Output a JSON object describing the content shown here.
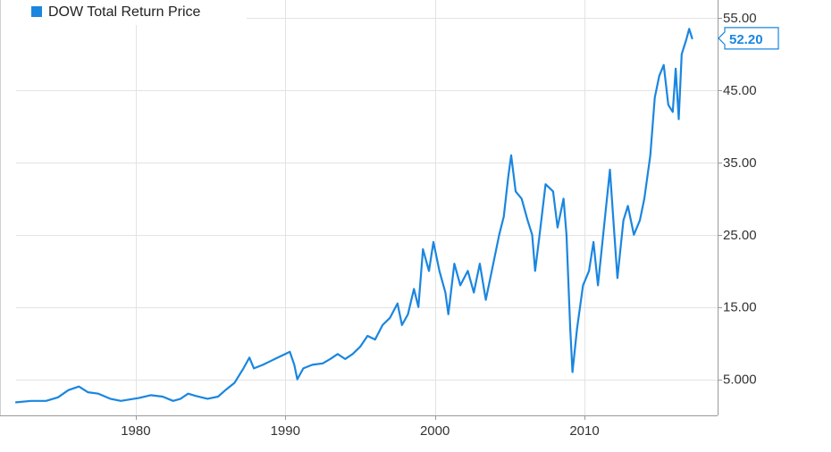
{
  "chart_data": {
    "type": "line",
    "series": [
      {
        "name": "DOW Total Return Price",
        "color": "#1a86e0",
        "points": [
          [
            1972.0,
            1.8
          ],
          [
            1973.0,
            2.0
          ],
          [
            1974.0,
            2.0
          ],
          [
            1974.8,
            2.5
          ],
          [
            1975.5,
            3.5
          ],
          [
            1976.2,
            4.0
          ],
          [
            1976.8,
            3.2
          ],
          [
            1977.5,
            3.0
          ],
          [
            1978.3,
            2.3
          ],
          [
            1979.0,
            2.0
          ],
          [
            1979.6,
            2.2
          ],
          [
            1980.2,
            2.4
          ],
          [
            1981.0,
            2.8
          ],
          [
            1981.8,
            2.6
          ],
          [
            1982.5,
            2.0
          ],
          [
            1983.0,
            2.3
          ],
          [
            1983.5,
            3.0
          ],
          [
            1984.0,
            2.7
          ],
          [
            1984.8,
            2.3
          ],
          [
            1985.5,
            2.6
          ],
          [
            1986.0,
            3.5
          ],
          [
            1986.6,
            4.5
          ],
          [
            1987.2,
            6.5
          ],
          [
            1987.6,
            8.0
          ],
          [
            1987.9,
            6.5
          ],
          [
            1988.5,
            7.0
          ],
          [
            1989.0,
            7.5
          ],
          [
            1989.5,
            8.0
          ],
          [
            1990.0,
            8.5
          ],
          [
            1990.3,
            8.8
          ],
          [
            1990.6,
            7.0
          ],
          [
            1990.8,
            5.0
          ],
          [
            1991.2,
            6.5
          ],
          [
            1991.8,
            7.0
          ],
          [
            1992.5,
            7.2
          ],
          [
            1993.0,
            7.8
          ],
          [
            1993.5,
            8.5
          ],
          [
            1994.0,
            7.8
          ],
          [
            1994.5,
            8.5
          ],
          [
            1995.0,
            9.5
          ],
          [
            1995.5,
            11.0
          ],
          [
            1996.0,
            10.5
          ],
          [
            1996.5,
            12.5
          ],
          [
            1997.0,
            13.5
          ],
          [
            1997.5,
            15.5
          ],
          [
            1997.8,
            12.5
          ],
          [
            1998.2,
            14.0
          ],
          [
            1998.6,
            17.5
          ],
          [
            1998.9,
            15.0
          ],
          [
            1999.2,
            23.0
          ],
          [
            1999.6,
            20.0
          ],
          [
            1999.9,
            24.0
          ],
          [
            2000.3,
            20.0
          ],
          [
            2000.7,
            17.0
          ],
          [
            2000.9,
            14.0
          ],
          [
            2001.3,
            21.0
          ],
          [
            2001.7,
            18.0
          ],
          [
            2002.2,
            20.0
          ],
          [
            2002.6,
            17.0
          ],
          [
            2003.0,
            21.0
          ],
          [
            2003.4,
            16.0
          ],
          [
            2003.8,
            20.0
          ],
          [
            2004.3,
            25.0
          ],
          [
            2004.6,
            27.5
          ],
          [
            2004.9,
            33.0
          ],
          [
            2005.1,
            36.0
          ],
          [
            2005.4,
            31.0
          ],
          [
            2005.8,
            30.0
          ],
          [
            2006.2,
            27.0
          ],
          [
            2006.5,
            25.0
          ],
          [
            2006.7,
            20.0
          ],
          [
            2007.0,
            25.0
          ],
          [
            2007.4,
            32.0
          ],
          [
            2007.9,
            31.0
          ],
          [
            2008.2,
            26.0
          ],
          [
            2008.6,
            30.0
          ],
          [
            2008.8,
            25.0
          ],
          [
            2009.05,
            12.0
          ],
          [
            2009.2,
            6.0
          ],
          [
            2009.5,
            12.0
          ],
          [
            2009.9,
            18.0
          ],
          [
            2010.3,
            20.0
          ],
          [
            2010.6,
            24.0
          ],
          [
            2010.9,
            18.0
          ],
          [
            2011.3,
            26.0
          ],
          [
            2011.7,
            34.0
          ],
          [
            2012.0,
            25.0
          ],
          [
            2012.2,
            19.0
          ],
          [
            2012.6,
            27.0
          ],
          [
            2012.9,
            29.0
          ],
          [
            2013.3,
            25.0
          ],
          [
            2013.7,
            27.0
          ],
          [
            2014.0,
            30.0
          ],
          [
            2014.4,
            36.0
          ],
          [
            2014.7,
            44.0
          ],
          [
            2015.0,
            47.0
          ],
          [
            2015.3,
            48.5
          ],
          [
            2015.6,
            43.0
          ],
          [
            2015.9,
            42.0
          ],
          [
            2016.1,
            48.0
          ],
          [
            2016.3,
            41.0
          ],
          [
            2016.5,
            50.0
          ],
          [
            2016.8,
            52.0
          ],
          [
            2017.0,
            53.5
          ],
          [
            2017.2,
            52.2
          ]
        ]
      }
    ],
    "x_range": [
      1972,
      2018.9
    ],
    "y_range": [
      0,
      57.5
    ],
    "x_ticks": [
      1980,
      1990,
      2000,
      2010
    ],
    "x_tick_labels": [
      "1980",
      "1990",
      "2000",
      "2010"
    ],
    "y_ticks": [
      5,
      15,
      25,
      35,
      45,
      55
    ],
    "y_tick_labels": [
      "5.000",
      "15.00",
      "25.00",
      "35.00",
      "45.00",
      "55.00"
    ],
    "last_value_label": "52.20",
    "grid": true,
    "legend_position": "top-left"
  }
}
